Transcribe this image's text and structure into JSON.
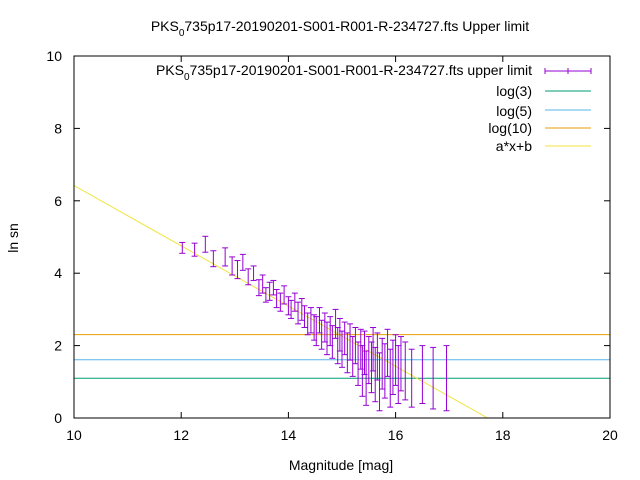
{
  "chart_data": {
    "type": "scatter",
    "title": {
      "pre": "PKS",
      "sub": "0",
      "post": "735p17-20190201-S001-R001-R-234727.fts Upper limit"
    },
    "xlabel": "Magnitude [mag]",
    "ylabel": "ln sn",
    "xlim": [
      10,
      20
    ],
    "ylim": [
      0,
      10
    ],
    "x_ticks": [
      10,
      12,
      14,
      16,
      18,
      20
    ],
    "y_ticks": [
      0,
      2,
      4,
      6,
      8,
      10
    ],
    "grid": false,
    "legend_position": "top-right",
    "series": [
      {
        "name": {
          "pre": "PKS",
          "sub": "0",
          "post": "735p17-20190201-S001-R001-R-234727.fts upper limit"
        },
        "kind": "errorbars",
        "color": "#9400d3",
        "points": [
          [
            12.02,
            4.7,
            0.15
          ],
          [
            12.25,
            4.65,
            0.18
          ],
          [
            12.45,
            4.8,
            0.22
          ],
          [
            12.6,
            4.4,
            0.22
          ],
          [
            12.82,
            4.45,
            0.25
          ],
          [
            12.95,
            4.2,
            0.25
          ],
          [
            13.05,
            4.1,
            0.25
          ],
          [
            13.15,
            4.3,
            0.22
          ],
          [
            13.25,
            3.9,
            0.22
          ],
          [
            13.35,
            4.0,
            0.2
          ],
          [
            13.45,
            3.6,
            0.22
          ],
          [
            13.52,
            3.7,
            0.25
          ],
          [
            13.58,
            3.4,
            0.2
          ],
          [
            13.65,
            3.5,
            0.25
          ],
          [
            13.72,
            3.6,
            0.2
          ],
          [
            13.78,
            3.3,
            0.25
          ],
          [
            13.85,
            3.2,
            0.25
          ],
          [
            13.92,
            3.4,
            0.25
          ],
          [
            14.0,
            3.1,
            0.25
          ],
          [
            14.05,
            3.0,
            0.25
          ],
          [
            14.12,
            3.2,
            0.25
          ],
          [
            14.18,
            2.9,
            0.3
          ],
          [
            14.25,
            3.0,
            0.3
          ],
          [
            14.3,
            2.8,
            0.3
          ],
          [
            14.36,
            2.6,
            0.3
          ],
          [
            14.42,
            2.7,
            0.35
          ],
          [
            14.48,
            2.5,
            0.35
          ],
          [
            14.52,
            2.4,
            0.4
          ],
          [
            14.58,
            2.7,
            0.35
          ],
          [
            14.62,
            2.3,
            0.4
          ],
          [
            14.68,
            2.5,
            0.4
          ],
          [
            14.72,
            2.2,
            0.45
          ],
          [
            14.78,
            2.4,
            0.4
          ],
          [
            14.82,
            2.1,
            0.45
          ],
          [
            14.88,
            2.6,
            0.4
          ],
          [
            14.92,
            2.0,
            0.5
          ],
          [
            14.96,
            2.3,
            0.45
          ],
          [
            15.0,
            1.9,
            0.5
          ],
          [
            15.05,
            2.2,
            0.45
          ],
          [
            15.1,
            1.8,
            0.55
          ],
          [
            15.15,
            2.1,
            0.5
          ],
          [
            15.2,
            1.7,
            0.55
          ],
          [
            15.25,
            2.0,
            0.5
          ],
          [
            15.3,
            1.5,
            0.6
          ],
          [
            15.35,
            1.9,
            0.55
          ],
          [
            15.38,
            1.3,
            0.7
          ],
          [
            15.42,
            1.8,
            0.6
          ],
          [
            15.45,
            1.1,
            0.75
          ],
          [
            15.5,
            1.6,
            0.65
          ],
          [
            15.55,
            1.4,
            0.7
          ],
          [
            15.58,
            1.9,
            0.6
          ],
          [
            15.62,
            1.2,
            0.75
          ],
          [
            15.66,
            1.7,
            0.65
          ],
          [
            15.7,
            1.0,
            0.8
          ],
          [
            15.75,
            1.5,
            0.7
          ],
          [
            15.8,
            1.3,
            0.75
          ],
          [
            15.85,
            1.8,
            0.65
          ],
          [
            15.9,
            1.1,
            0.8
          ],
          [
            15.95,
            1.4,
            0.75
          ],
          [
            16.0,
            1.6,
            0.7
          ],
          [
            16.05,
            1.2,
            0.8
          ],
          [
            16.1,
            1.5,
            0.75
          ],
          [
            16.18,
            1.3,
            0.8
          ],
          [
            16.3,
            1.1,
            0.8
          ],
          [
            16.5,
            1.2,
            0.8
          ],
          [
            16.7,
            1.1,
            0.85
          ],
          [
            16.95,
            1.1,
            0.9
          ]
        ]
      },
      {
        "name": "log(3)",
        "kind": "hline",
        "y": 1.0986,
        "color": "#009e73"
      },
      {
        "name": "log(5)",
        "kind": "hline",
        "y": 1.6094,
        "color": "#56b4e9"
      },
      {
        "name": "log(10)",
        "kind": "hline",
        "y": 2.3026,
        "color": "#e69f00"
      },
      {
        "name": "a*x+b",
        "kind": "fitline",
        "slope": -0.832,
        "intercept": 14.74,
        "color": "#f0e442"
      }
    ]
  }
}
